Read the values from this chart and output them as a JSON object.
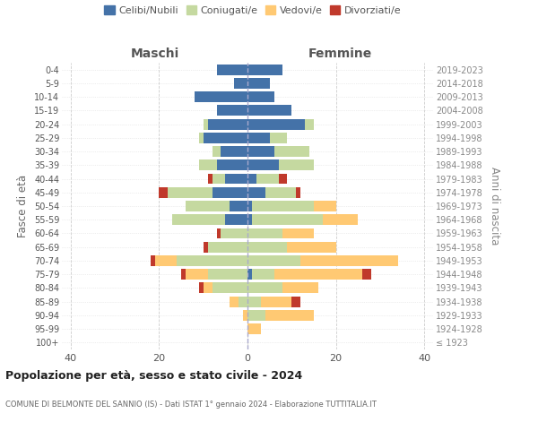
{
  "age_groups": [
    "100+",
    "95-99",
    "90-94",
    "85-89",
    "80-84",
    "75-79",
    "70-74",
    "65-69",
    "60-64",
    "55-59",
    "50-54",
    "45-49",
    "40-44",
    "35-39",
    "30-34",
    "25-29",
    "20-24",
    "15-19",
    "10-14",
    "5-9",
    "0-4"
  ],
  "birth_years": [
    "≤ 1923",
    "1924-1928",
    "1929-1933",
    "1934-1938",
    "1939-1943",
    "1944-1948",
    "1949-1953",
    "1954-1958",
    "1959-1963",
    "1964-1968",
    "1969-1973",
    "1974-1978",
    "1979-1983",
    "1984-1988",
    "1989-1993",
    "1994-1998",
    "1999-2003",
    "2004-2008",
    "2009-2013",
    "2014-2018",
    "2019-2023"
  ],
  "male": {
    "celibi": [
      0,
      0,
      0,
      0,
      0,
      0,
      0,
      0,
      0,
      5,
      4,
      8,
      5,
      7,
      6,
      10,
      9,
      7,
      12,
      3,
      7
    ],
    "coniugati": [
      0,
      0,
      0,
      2,
      8,
      9,
      16,
      9,
      6,
      12,
      10,
      10,
      3,
      4,
      2,
      1,
      1,
      0,
      0,
      0,
      0
    ],
    "vedovi": [
      0,
      0,
      1,
      2,
      2,
      5,
      5,
      0,
      0,
      0,
      0,
      0,
      0,
      0,
      0,
      0,
      0,
      0,
      0,
      0,
      0
    ],
    "divorziati": [
      0,
      0,
      0,
      0,
      1,
      1,
      1,
      1,
      1,
      0,
      0,
      2,
      1,
      0,
      0,
      0,
      0,
      0,
      0,
      0,
      0
    ]
  },
  "female": {
    "nubili": [
      0,
      0,
      0,
      0,
      0,
      1,
      0,
      0,
      0,
      1,
      1,
      4,
      2,
      7,
      6,
      5,
      13,
      10,
      6,
      5,
      8
    ],
    "coniugate": [
      0,
      0,
      4,
      3,
      8,
      5,
      12,
      9,
      8,
      16,
      14,
      7,
      5,
      8,
      8,
      4,
      2,
      0,
      0,
      0,
      0
    ],
    "vedove": [
      0,
      3,
      11,
      7,
      8,
      20,
      22,
      11,
      7,
      8,
      5,
      0,
      0,
      0,
      0,
      0,
      0,
      0,
      0,
      0,
      0
    ],
    "divorziate": [
      0,
      0,
      0,
      2,
      0,
      2,
      0,
      0,
      0,
      0,
      0,
      1,
      2,
      0,
      0,
      0,
      0,
      0,
      0,
      0,
      0
    ]
  },
  "color_celibi": "#4472a8",
  "color_coniugati": "#c5d9a0",
  "color_vedovi": "#ffc973",
  "color_divorziati": "#c0392b",
  "xlim": 42,
  "title": "Popolazione per età, sesso e stato civile - 2024",
  "subtitle": "COMUNE DI BELMONTE DEL SANNIO (IS) - Dati ISTAT 1° gennaio 2024 - Elaborazione TUTTITALIA.IT",
  "ylabel_left": "Fasce di età",
  "ylabel_right": "Anni di nascita",
  "xlabel_left": "Maschi",
  "xlabel_right": "Femmine"
}
